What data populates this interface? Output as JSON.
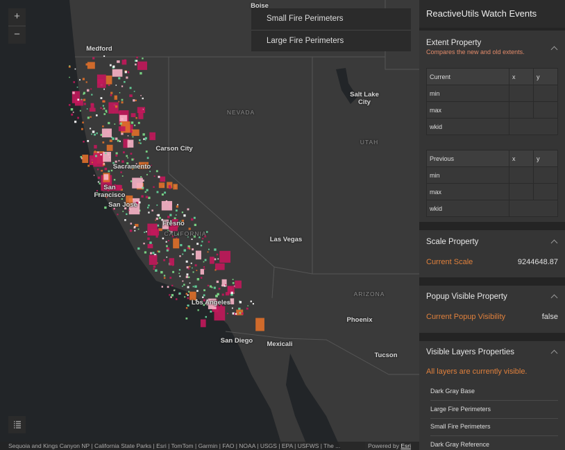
{
  "map": {
    "zoom_in": "+",
    "zoom_out": "−",
    "layer_menu": [
      "Small Fire Perimeters",
      "Large Fire Perimeters"
    ],
    "place_labels": [
      "Boise",
      "Medford",
      "NEVADA",
      "Salt Lake City",
      "UTAH",
      "Carson City",
      "Sacramento",
      "San Francisco",
      "San Jose",
      "Fresno",
      "CALIFORNIA",
      "Las Vegas",
      "ARIZONA",
      "Phoenix",
      "Los Angeles",
      "San Diego",
      "Mexicali",
      "Tucson"
    ],
    "attribution": "Sequoia and Kings Canyon NP | California State Parks | Esri | TomTom | Garmin | FAO | NOAA | USGS | EPA | USFWS | The ...",
    "powered_by": "Powered by",
    "esri_link": "Esri"
  },
  "panel": {
    "title": "ReactiveUtils Watch Events",
    "extent": {
      "heading": "Extent Property",
      "description": "Compares the new and old extents.",
      "current_table": {
        "header": [
          "Current",
          "x",
          "y"
        ],
        "rows": [
          "min",
          "max",
          "wkid"
        ]
      },
      "previous_table": {
        "header": [
          "Previous",
          "x",
          "y"
        ],
        "rows": [
          "min",
          "max",
          "wkid"
        ]
      }
    },
    "scale": {
      "heading": "Scale Property",
      "label": "Current Scale",
      "value": "9244648.87"
    },
    "popup": {
      "heading": "Popup Visible Property",
      "label": "Current Popup Visibility",
      "value": "false"
    },
    "layers": {
      "heading": "Visible Layers Properties",
      "message": "All layers are currently visible.",
      "items": [
        "Dark Gray Base",
        "Large Fire Perimeters",
        "Small Fire Perimeters",
        "Dark Gray Reference"
      ]
    }
  }
}
